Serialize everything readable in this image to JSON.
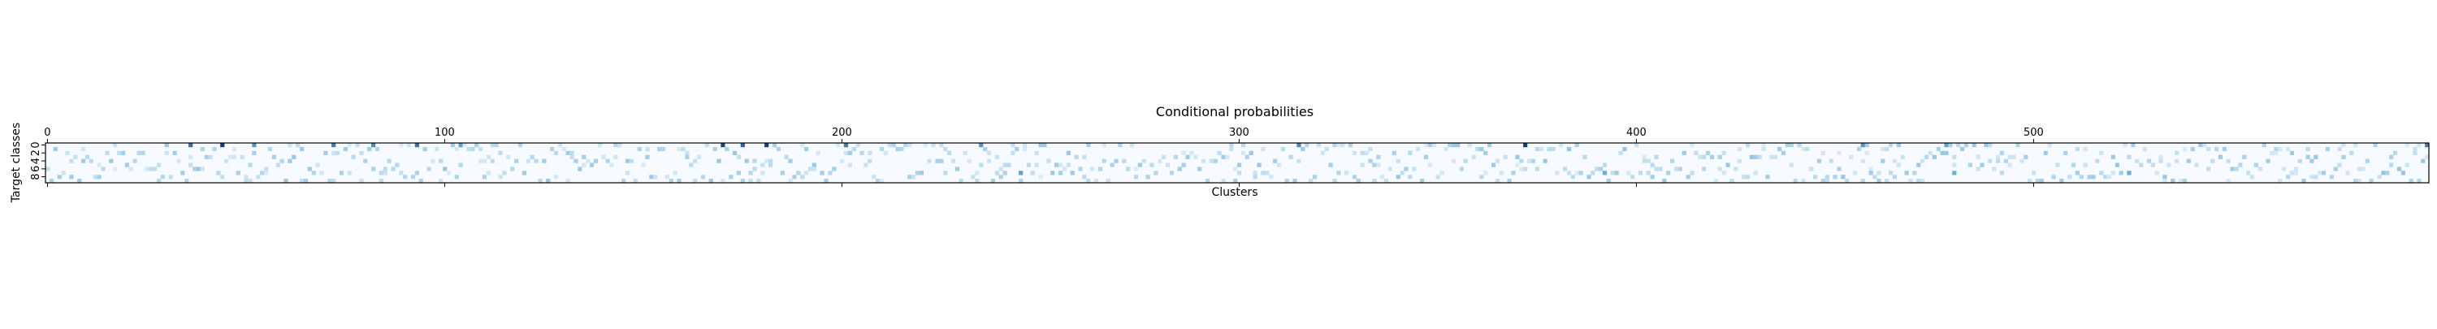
{
  "chart_data": {
    "type": "heatmap",
    "title": "Conditional probabilities",
    "xlabel": "Clusters",
    "ylabel": "Target classes",
    "x_ticks": [
      "0",
      "100",
      "200",
      "300",
      "400",
      "500"
    ],
    "y_ticks": [
      "0",
      "2",
      "4",
      "6",
      "8"
    ],
    "x_axis_position": "top",
    "xlim": [
      0,
      599
    ],
    "ylim": [
      0,
      9
    ],
    "n_clusters": 600,
    "n_classes": 10,
    "colormap": "Blues",
    "colors": {
      "low": "#f7fbff",
      "mid": "#6baed6",
      "high": "#08306b"
    },
    "peak_cells": [
      {
        "cluster": 36,
        "class": 0,
        "value": 0.75
      },
      {
        "cluster": 44,
        "class": 0,
        "value": 0.95
      },
      {
        "cluster": 52,
        "class": 0,
        "value": 0.6
      },
      {
        "cluster": 72,
        "class": 0,
        "value": 0.7
      },
      {
        "cluster": 82,
        "class": 0,
        "value": 0.65
      },
      {
        "cluster": 93,
        "class": 0,
        "value": 0.75
      },
      {
        "cluster": 104,
        "class": 0,
        "value": 0.55
      },
      {
        "cluster": 170,
        "class": 0,
        "value": 0.9
      },
      {
        "cluster": 175,
        "class": 0,
        "value": 0.8
      },
      {
        "cluster": 181,
        "class": 0,
        "value": 0.95
      },
      {
        "cluster": 201,
        "class": 0,
        "value": 0.7
      },
      {
        "cluster": 235,
        "class": 0,
        "value": 0.6
      },
      {
        "cluster": 315,
        "class": 0,
        "value": 0.65
      },
      {
        "cluster": 372,
        "class": 0,
        "value": 0.95
      },
      {
        "cluster": 457,
        "class": 0,
        "value": 0.6
      },
      {
        "cluster": 478,
        "class": 0,
        "value": 0.55
      },
      {
        "cluster": 599,
        "class": 0,
        "value": 0.7
      },
      {
        "cluster": 245,
        "class": 7,
        "value": 0.55
      },
      {
        "cluster": 392,
        "class": 7,
        "value": 0.5
      },
      {
        "cluster": 480,
        "class": 7,
        "value": 0.5
      },
      {
        "cluster": 524,
        "class": 7,
        "value": 0.5
      }
    ]
  }
}
